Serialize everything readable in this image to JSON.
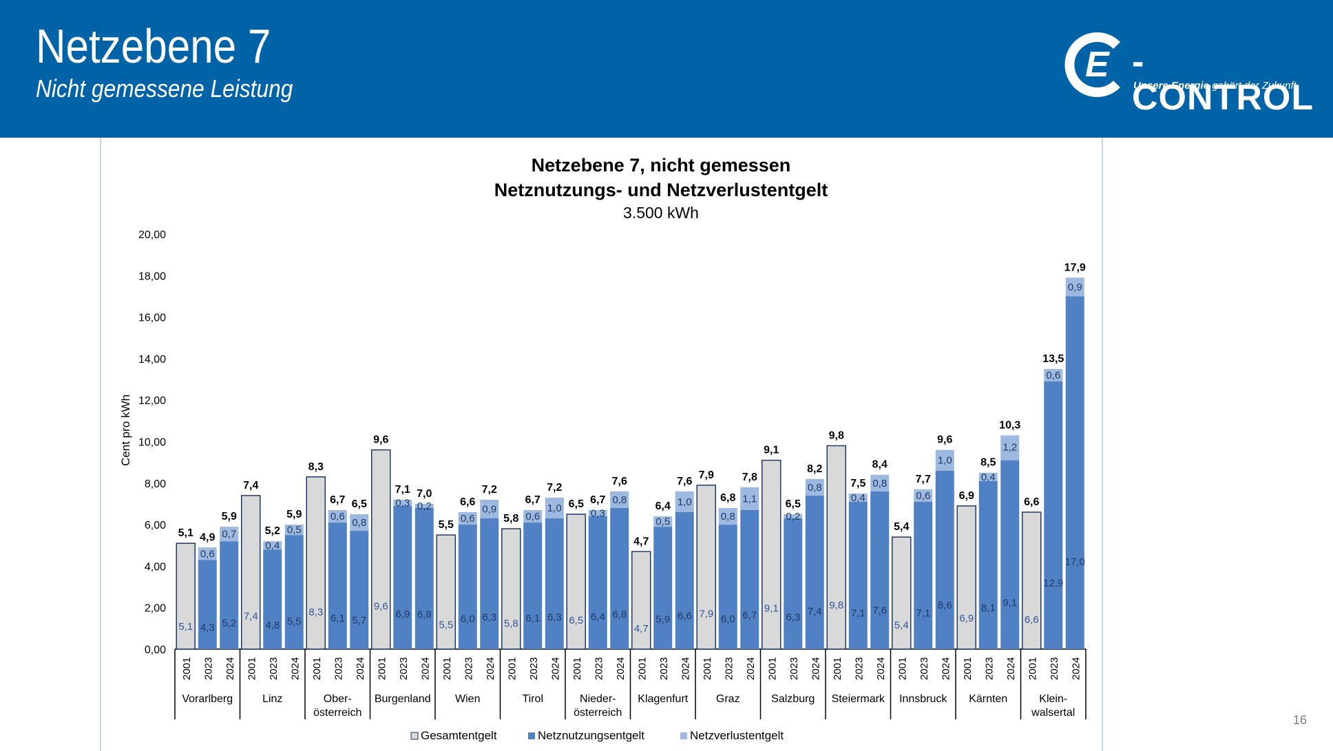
{
  "header": {
    "title": "Netzebene 7",
    "subtitle": "Nicht gemessene Leistung",
    "logo_text": "-CONTROL",
    "logo_letter": "E",
    "logo_tagline_bold": "Unsere Energie",
    "logo_tagline_rest": " gehört der Zukunft."
  },
  "page_number": "16",
  "colors": {
    "header_bg": "#0063A7",
    "gesamt": "#D9D9D9",
    "netznutzung": "#4F81C4",
    "netzverlust": "#9DB9E0"
  },
  "chart_data": {
    "type": "bar",
    "title_line1": "Netzebene 7, nicht gemessen",
    "title_line2": "Netznutzungs- und Netzverlustentgelt",
    "subtitle": "3.500 kWh",
    "ylabel": "Cent pro kWh",
    "ylim": [
      0,
      20
    ],
    "yticks": [
      "0,00",
      "2,00",
      "4,00",
      "6,00",
      "8,00",
      "10,00",
      "12,00",
      "14,00",
      "16,00",
      "18,00",
      "20,00"
    ],
    "legend": [
      "Gesamtentgelt",
      "Netznutzungsentgelt",
      "Netzverlustentgelt"
    ],
    "legend_position": "bottom",
    "groups": [
      {
        "name": [
          "Vorarlberg"
        ],
        "bars": [
          {
            "year": "2001",
            "type": "gesamt",
            "value": 5.1,
            "label": "5,1",
            "total": "5,1"
          },
          {
            "year": "2023",
            "type": "stack",
            "nn": 4.3,
            "nv": 0.6,
            "nn_label": "4,3",
            "nv_label": "0,6",
            "total": "4,9"
          },
          {
            "year": "2024",
            "type": "stack",
            "nn": 5.2,
            "nv": 0.7,
            "nn_label": "5,2",
            "nv_label": "0,7",
            "total": "5,9"
          }
        ]
      },
      {
        "name": [
          "Linz"
        ],
        "bars": [
          {
            "year": "2001",
            "type": "gesamt",
            "value": 7.4,
            "label": "7,4",
            "total": "7,4"
          },
          {
            "year": "2023",
            "type": "stack",
            "nn": 4.8,
            "nv": 0.4,
            "nn_label": "4,8",
            "nv_label": "0,4",
            "total": "5,2"
          },
          {
            "year": "2024",
            "type": "stack",
            "nn": 5.5,
            "nv": 0.5,
            "nn_label": "5,5",
            "nv_label": "0,5",
            "total": "5,9"
          }
        ]
      },
      {
        "name": [
          "Ober-",
          "österreich"
        ],
        "bars": [
          {
            "year": "2001",
            "type": "gesamt",
            "value": 8.3,
            "label": "8,3",
            "total": "8,3"
          },
          {
            "year": "2023",
            "type": "stack",
            "nn": 6.1,
            "nv": 0.6,
            "nn_label": "6,1",
            "nv_label": "0,6",
            "total": "6,7"
          },
          {
            "year": "2024",
            "type": "stack",
            "nn": 5.7,
            "nv": 0.8,
            "nn_label": "5,7",
            "nv_label": "0,8",
            "total": "6,5"
          }
        ]
      },
      {
        "name": [
          "Burgenland"
        ],
        "bars": [
          {
            "year": "2001",
            "type": "gesamt",
            "value": 9.6,
            "label": "9,6",
            "total": "9,6"
          },
          {
            "year": "2023",
            "type": "stack",
            "nn": 6.9,
            "nv": 0.3,
            "nn_label": "6,9",
            "nv_label": "0,3",
            "total": "7,1"
          },
          {
            "year": "2024",
            "type": "stack",
            "nn": 6.8,
            "nv": 0.2,
            "nn_label": "6,8",
            "nv_label": "0,2",
            "total": "7,0"
          }
        ]
      },
      {
        "name": [
          "Wien"
        ],
        "bars": [
          {
            "year": "2001",
            "type": "gesamt",
            "value": 5.5,
            "label": "5,5",
            "total": "5,5"
          },
          {
            "year": "2023",
            "type": "stack",
            "nn": 6.0,
            "nv": 0.6,
            "nn_label": "6,0",
            "nv_label": "0,6",
            "total": "6,6"
          },
          {
            "year": "2024",
            "type": "stack",
            "nn": 6.3,
            "nv": 0.9,
            "nn_label": "6,3",
            "nv_label": "0,9",
            "total": "7,2"
          }
        ]
      },
      {
        "name": [
          "Tirol"
        ],
        "bars": [
          {
            "year": "2001",
            "type": "gesamt",
            "value": 5.8,
            "label": "5,8",
            "total": "5,8"
          },
          {
            "year": "2023",
            "type": "stack",
            "nn": 6.1,
            "nv": 0.6,
            "nn_label": "6,1",
            "nv_label": "0,6",
            "total": "6,7"
          },
          {
            "year": "2024",
            "type": "stack",
            "nn": 6.3,
            "nv": 1.0,
            "nn_label": "6,3",
            "nv_label": "1,0",
            "total": "7,2"
          }
        ]
      },
      {
        "name": [
          "Nieder-",
          "österreich"
        ],
        "bars": [
          {
            "year": "2001",
            "type": "gesamt",
            "value": 6.5,
            "label": "6,5",
            "total": "6,5"
          },
          {
            "year": "2023",
            "type": "stack",
            "nn": 6.4,
            "nv": 0.3,
            "nn_label": "6,4",
            "nv_label": "0,3",
            "total": "6,7"
          },
          {
            "year": "2024",
            "type": "stack",
            "nn": 6.8,
            "nv": 0.8,
            "nn_label": "6,8",
            "nv_label": "0,8",
            "total": "7,6"
          }
        ]
      },
      {
        "name": [
          "Klagenfurt"
        ],
        "bars": [
          {
            "year": "2001",
            "type": "gesamt",
            "value": 4.7,
            "label": "4,7",
            "total": "4,7"
          },
          {
            "year": "2023",
            "type": "stack",
            "nn": 5.9,
            "nv": 0.5,
            "nn_label": "5,9",
            "nv_label": "0,5",
            "total": "6,4"
          },
          {
            "year": "2024",
            "type": "stack",
            "nn": 6.6,
            "nv": 1.0,
            "nn_label": "6,6",
            "nv_label": "1,0",
            "total": "7,6"
          }
        ]
      },
      {
        "name": [
          "Graz"
        ],
        "bars": [
          {
            "year": "2001",
            "type": "gesamt",
            "value": 7.9,
            "label": "7,9",
            "total": "7,9"
          },
          {
            "year": "2023",
            "type": "stack",
            "nn": 6.0,
            "nv": 0.8,
            "nn_label": "6,0",
            "nv_label": "0,8",
            "total": "6,8"
          },
          {
            "year": "2024",
            "type": "stack",
            "nn": 6.7,
            "nv": 1.1,
            "nn_label": "6,7",
            "nv_label": "1,1",
            "total": "7,8"
          }
        ]
      },
      {
        "name": [
          "Salzburg"
        ],
        "bars": [
          {
            "year": "2001",
            "type": "gesamt",
            "value": 9.1,
            "label": "9,1",
            "total": "9,1"
          },
          {
            "year": "2023",
            "type": "stack",
            "nn": 6.3,
            "nv": 0.2,
            "nn_label": "6,3",
            "nv_label": "0,2",
            "total": "6,5"
          },
          {
            "year": "2024",
            "type": "stack",
            "nn": 7.4,
            "nv": 0.8,
            "nn_label": "7,4",
            "nv_label": "0,8",
            "total": "8,2"
          }
        ]
      },
      {
        "name": [
          "Steiermark"
        ],
        "bars": [
          {
            "year": "2001",
            "type": "gesamt",
            "value": 9.8,
            "label": "9,8",
            "total": "9,8"
          },
          {
            "year": "2023",
            "type": "stack",
            "nn": 7.1,
            "nv": 0.4,
            "nn_label": "7,1",
            "nv_label": "0,4",
            "total": "7,5"
          },
          {
            "year": "2024",
            "type": "stack",
            "nn": 7.6,
            "nv": 0.8,
            "nn_label": "7,6",
            "nv_label": "0,8",
            "total": "8,4"
          }
        ]
      },
      {
        "name": [
          "Innsbruck"
        ],
        "bars": [
          {
            "year": "2001",
            "type": "gesamt",
            "value": 5.4,
            "label": "5,4",
            "total": "5,4"
          },
          {
            "year": "2023",
            "type": "stack",
            "nn": 7.1,
            "nv": 0.6,
            "nn_label": "7,1",
            "nv_label": "0,6",
            "total": "7,7"
          },
          {
            "year": "2024",
            "type": "stack",
            "nn": 8.6,
            "nv": 1.0,
            "nn_label": "8,6",
            "nv_label": "1,0",
            "total": "9,6"
          }
        ]
      },
      {
        "name": [
          "Kärnten"
        ],
        "bars": [
          {
            "year": "2001",
            "type": "gesamt",
            "value": 6.9,
            "label": "6,9",
            "total": "6,9"
          },
          {
            "year": "2023",
            "type": "stack",
            "nn": 8.1,
            "nv": 0.4,
            "nn_label": "8,1",
            "nv_label": "0,4",
            "total": "8,5"
          },
          {
            "year": "2024",
            "type": "stack",
            "nn": 9.1,
            "nv": 1.2,
            "nn_label": "9,1",
            "nv_label": "1,2",
            "total": "10,3"
          }
        ]
      },
      {
        "name": [
          "Klein-",
          "walsertal"
        ],
        "bars": [
          {
            "year": "2001",
            "type": "gesamt",
            "value": 6.6,
            "label": "6,6",
            "total": "6,6"
          },
          {
            "year": "2023",
            "type": "stack",
            "nn": 12.9,
            "nv": 0.6,
            "nn_label": "12,9",
            "nv_label": "0,6",
            "total": "13,5"
          },
          {
            "year": "2024",
            "type": "stack",
            "nn": 17.0,
            "nv": 0.9,
            "nn_label": "17,0",
            "nv_label": "0,9",
            "total": "17,9"
          }
        ]
      }
    ]
  }
}
